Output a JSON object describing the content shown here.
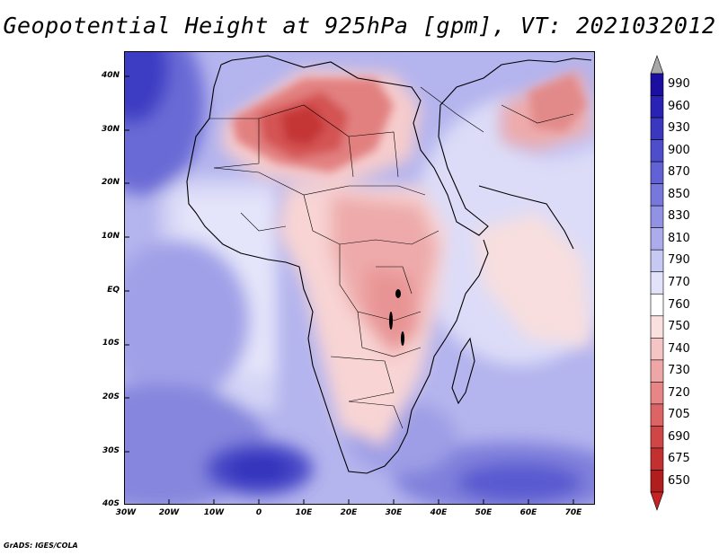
{
  "title": "Geopotential Height at 925hPa [gpm], VT: 2021032012",
  "credit": "GrADS: IGES/COLA",
  "map": {
    "variable": "Geopotential Height",
    "level": "925hPa",
    "units": "gpm",
    "valid_time": "2021032012",
    "lat_ticks": [
      "40N",
      "30N",
      "20N",
      "10N",
      "EQ",
      "10S",
      "20S",
      "30S",
      "40S"
    ],
    "lon_ticks": [
      "30W",
      "20W",
      "10W",
      "0",
      "10E",
      "20E",
      "30E",
      "40E",
      "50E",
      "60E",
      "70E"
    ]
  },
  "colorbar": {
    "levels": [
      "990",
      "960",
      "930",
      "900",
      "870",
      "850",
      "830",
      "810",
      "790",
      "770",
      "760",
      "750",
      "740",
      "730",
      "720",
      "705",
      "690",
      "675",
      "650"
    ],
    "colors": [
      "#1a0fa0",
      "#2a22b4",
      "#3b38c0",
      "#4e4ecb",
      "#6262d4",
      "#7878dc",
      "#9292e4",
      "#acacec",
      "#c8c8f4",
      "#e2e2fa",
      "#ffffff",
      "#fbe0e0",
      "#f5c4c4",
      "#eea6a6",
      "#e68686",
      "#dc6464",
      "#d04646",
      "#c23030",
      "#b01e1e"
    ],
    "top_arrow_color": "#a8a8a8",
    "bottom_arrow_color": "#c42424"
  }
}
